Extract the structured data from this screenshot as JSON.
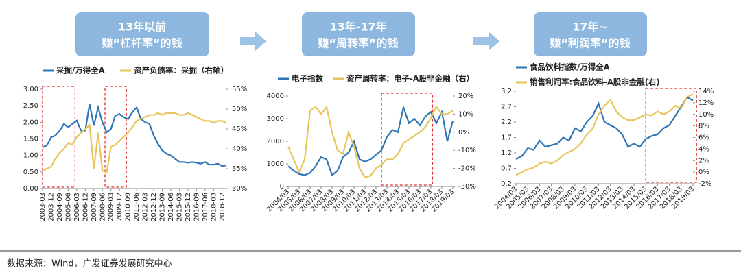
{
  "headers": [
    {
      "title": "13年以前",
      "subtitle": "赚“杠杆率”的钱"
    },
    {
      "title": "13年-17年",
      "subtitle": "赚“周转率”的钱"
    },
    {
      "title": "17年~",
      "subtitle": "赚“利润率”的钱"
    }
  ],
  "chart_data": [
    {
      "type": "line",
      "categories": [
        "2003-03",
        null,
        "2003-12",
        null,
        "2004-09",
        null,
        "2005-06",
        null,
        "2006-03",
        null,
        "2006-12",
        null,
        "2007-09",
        null,
        "2008-06",
        null,
        "2009-03",
        null,
        "2009-12",
        null,
        "2010-09",
        null,
        "2011-06",
        null,
        "2012-03",
        null,
        "2012-12",
        null,
        "2013-09",
        null,
        "2014-06",
        null,
        "2015-03",
        null,
        "2015-12",
        null,
        "2016-09",
        null,
        "2017-06",
        null,
        "2018-03",
        null,
        "2018-12",
        null
      ],
      "series": [
        {
          "name": "采掘/万得全A",
          "color": "#2e75b6",
          "values": [
            1.25,
            1.3,
            1.55,
            1.6,
            1.75,
            1.95,
            1.85,
            1.95,
            2.05,
            1.75,
            1.75,
            2.55,
            1.9,
            2.45,
            2.0,
            1.7,
            1.8,
            2.2,
            2.25,
            2.15,
            2.1,
            2.3,
            2.45,
            2.1,
            2.0,
            1.95,
            1.6,
            1.35,
            1.15,
            1.05,
            1.0,
            0.9,
            0.8,
            0.8,
            0.78,
            0.8,
            0.78,
            0.75,
            0.8,
            0.72,
            0.72,
            0.75,
            0.68,
            0.7
          ]
        },
        {
          "name": "资产负债率：采掘（右轴）",
          "color": "#e8c55a",
          "axis": "y2",
          "values": [
            34.5,
            35,
            35.5,
            37.5,
            39,
            40,
            41.5,
            41,
            43,
            44,
            45,
            46,
            35,
            44,
            34.5,
            34,
            40.5,
            41,
            42,
            43,
            44,
            45.5,
            47,
            47.5,
            48,
            48.5,
            48.5,
            49,
            48.5,
            49,
            49,
            49,
            48.5,
            48.5,
            49,
            48.5,
            48,
            47.5,
            47,
            47,
            46.5,
            47,
            47,
            46.5
          ]
        }
      ],
      "ylim": [
        0,
        3
      ],
      "yticks": [
        {
          "value": 0,
          "label": "0.00"
        },
        {
          "value": 0.5,
          "label": "0.50"
        },
        {
          "value": 1,
          "label": "1.00"
        },
        {
          "value": 1.5,
          "label": "1.50"
        },
        {
          "value": 2,
          "label": "2.00"
        },
        {
          "value": 2.5,
          "label": "2.50"
        },
        {
          "value": 3,
          "label": "3.00"
        }
      ],
      "y2lim": [
        30,
        55
      ],
      "y2ticks": [
        {
          "value": 30,
          "label": "30%"
        },
        {
          "value": 35,
          "label": "35%"
        },
        {
          "value": 40,
          "label": "40%"
        },
        {
          "value": 45,
          "label": "45%"
        },
        {
          "value": 50,
          "label": "50%"
        },
        {
          "value": 55,
          "label": "55%"
        }
      ]
    },
    {
      "type": "line",
      "categories": [
        "2004/03",
        null,
        "2005/03",
        null,
        "2006/03",
        null,
        "2007/03",
        null,
        "2008/03",
        null,
        "2009/03",
        null,
        "2010/03",
        null,
        "2011/03",
        null,
        "2012/03",
        null,
        "2013/03",
        null,
        "2014/03",
        null,
        "2015/03",
        null,
        "2016/03",
        null,
        "2017/03",
        null,
        "2018/03",
        null,
        "2019/03"
      ],
      "series": [
        {
          "name": "电子指数",
          "color": "#2e75b6",
          "values": [
            900,
            700,
            550,
            500,
            600,
            900,
            1300,
            1200,
            500,
            700,
            1300,
            1500,
            2000,
            1200,
            1100,
            1200,
            1400,
            1600,
            2200,
            2500,
            2400,
            3500,
            2800,
            3000,
            2700,
            3100,
            3300,
            2800,
            3300,
            2000,
            2900
          ]
        },
        {
          "name": "资产周转率：电子-A股非金融（右）",
          "color": "#e8c55a",
          "axis": "y2",
          "values": [
            -8,
            -15,
            -22,
            -15,
            12,
            14,
            10,
            14,
            0,
            -10,
            -12,
            0,
            -8,
            -20,
            -25,
            -24,
            -20,
            -18,
            -15,
            -15,
            -12,
            -6,
            -4,
            -2,
            0,
            3,
            8,
            14,
            10,
            10,
            12
          ]
        }
      ],
      "ylim": [
        0,
        4000
      ],
      "yticks": [
        0,
        1000,
        2000,
        3000,
        4000
      ],
      "y2lim": [
        -30,
        20
      ],
      "y2ticks": [
        {
          "value": -30,
          "label": "-30%"
        },
        {
          "value": -20,
          "label": "-20%"
        },
        {
          "value": -10,
          "label": "-10%"
        },
        {
          "value": 0,
          "label": "0%"
        },
        {
          "value": 10,
          "label": "10%"
        },
        {
          "value": 20,
          "label": "20%"
        }
      ]
    },
    {
      "type": "line",
      "categories": [
        "2004/03",
        null,
        "2005/03",
        null,
        "2006/03",
        null,
        "2007/03",
        null,
        "2008/03",
        null,
        "2009/03",
        null,
        "2010/03",
        null,
        "2011/03",
        null,
        "2012/03",
        null,
        "2013/03",
        null,
        "2014/03",
        null,
        "2015/03",
        null,
        "2016/03",
        null,
        "2017/03",
        null,
        "2018/03",
        null,
        "2019/03"
      ],
      "series": [
        {
          "name": "食品饮料指数/万得全A",
          "color": "#2e75b6",
          "values": [
            1.0,
            1.1,
            1.35,
            1.3,
            1.6,
            1.4,
            1.45,
            1.5,
            1.7,
            1.6,
            2.0,
            1.9,
            2.2,
            2.4,
            2.8,
            2.2,
            2.1,
            2.0,
            1.8,
            1.4,
            1.5,
            1.4,
            1.65,
            1.75,
            1.8,
            2.0,
            2.1,
            2.4,
            2.7,
            3.0,
            2.9
          ]
        },
        {
          "name": "销售利润率:食品饮料-A股非金融(右)",
          "color": "#e8c55a",
          "axis": "y2",
          "values": [
            -0.5,
            0,
            0.5,
            0.8,
            1.5,
            1.8,
            1.5,
            2,
            3,
            3.5,
            4,
            5,
            6.5,
            7.5,
            10,
            11.5,
            12.5,
            10.5,
            9.5,
            9,
            9,
            9.5,
            10,
            9.8,
            10.5,
            10,
            10.5,
            11.5,
            11,
            13,
            13.5
          ]
        }
      ],
      "ylim": [
        0.2,
        3.2
      ],
      "yticks": [
        0.2,
        0.7,
        1.2,
        1.7,
        2.2,
        2.7,
        3.2
      ],
      "y2lim": [
        -2,
        14
      ],
      "y2ticks": [
        {
          "value": -2,
          "label": "-2%"
        },
        {
          "value": 0,
          "label": "0%"
        },
        {
          "value": 2,
          "label": "2%"
        },
        {
          "value": 4,
          "label": "4%"
        },
        {
          "value": 6,
          "label": "6%"
        },
        {
          "value": 8,
          "label": "8%"
        },
        {
          "value": 10,
          "label": "10%"
        },
        {
          "value": 12,
          "label": "12%"
        },
        {
          "value": 14,
          "label": "14%"
        }
      ]
    }
  ],
  "source": "数据来源：Wind，广发证券发展研究中心"
}
